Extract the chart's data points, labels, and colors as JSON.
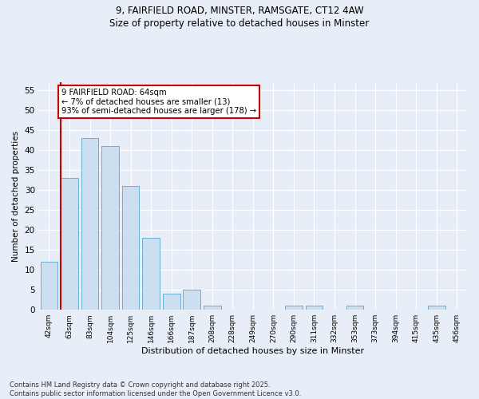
{
  "title_line1": "9, FAIRFIELD ROAD, MINSTER, RAMSGATE, CT12 4AW",
  "title_line2": "Size of property relative to detached houses in Minster",
  "xlabel": "Distribution of detached houses by size in Minster",
  "ylabel": "Number of detached properties",
  "categories": [
    "42sqm",
    "63sqm",
    "83sqm",
    "104sqm",
    "125sqm",
    "146sqm",
    "166sqm",
    "187sqm",
    "208sqm",
    "228sqm",
    "249sqm",
    "270sqm",
    "290sqm",
    "311sqm",
    "332sqm",
    "353sqm",
    "373sqm",
    "394sqm",
    "415sqm",
    "435sqm",
    "456sqm"
  ],
  "values": [
    12,
    33,
    43,
    41,
    31,
    18,
    4,
    5,
    1,
    0,
    0,
    0,
    1,
    1,
    0,
    1,
    0,
    0,
    0,
    1,
    0
  ],
  "bar_color": "#ccdff0",
  "bar_edge_color": "#6aaed6",
  "highlight_color": "#cc0000",
  "ylim": [
    0,
    57
  ],
  "yticks": [
    0,
    5,
    10,
    15,
    20,
    25,
    30,
    35,
    40,
    45,
    50,
    55
  ],
  "annotation_text": "9 FAIRFIELD ROAD: 64sqm\n← 7% of detached houses are smaller (13)\n93% of semi-detached houses are larger (178) →",
  "annotation_box_color": "#cc0000",
  "footer_text": "Contains HM Land Registry data © Crown copyright and database right 2025.\nContains public sector information licensed under the Open Government Licence v3.0.",
  "background_color": "#e8eef7",
  "plot_bg_color": "#e8eef7",
  "grid_color": "#ffffff"
}
